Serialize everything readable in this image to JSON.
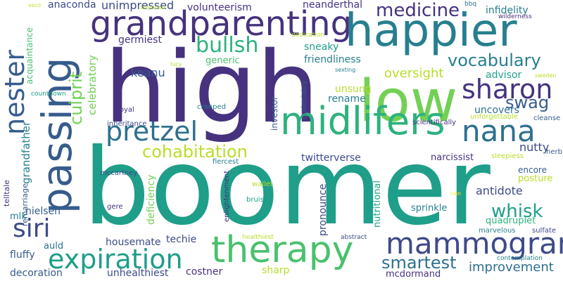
{
  "palette": {
    "dark_purple": "#46327e",
    "indigo": "#3e4a89",
    "blue": "#365c8d",
    "steel_blue": "#2d708e",
    "teal": "#277f8e",
    "teal_green": "#1f9e89",
    "green": "#2db27d",
    "light_green": "#4ac16d",
    "lime": "#73d055",
    "yellow_green": "#b8de29",
    "yellow": "#fde725"
  },
  "words": {
    "boomer": "boomer",
    "high": "high",
    "happier": "happier",
    "low": "low",
    "passing": "passing",
    "grandparenting": "grandparenting",
    "midlifers": "midlifers",
    "therapy": "therapy",
    "mammogram": "mammogram",
    "nana": "nana",
    "sharon": "sharon",
    "nester": "nester",
    "expiration": "expiration",
    "pretzel": "pretzel",
    "siri": "siri",
    "medicine": "medicine",
    "bullsh": "bullsh",
    "vocabulary": "vocabulary",
    "swag": "swag",
    "cohabitation": "cohabitation",
    "whisk": "whisk",
    "smartest": "smartest",
    "culprit": "culprit",
    "improvement": "improvement",
    "oversight": "oversight",
    "unimpressed": "unimpressed",
    "volunteerism": "volunteerism",
    "neanderthal": "neanderthal",
    "infidelity": "infidelity",
    "anaconda": "anaconda",
    "germiest": "germiest",
    "keanu": "keanu",
    "generic": "generic",
    "sneaky": "sneaky",
    "friendliness": "friendliness",
    "advisor": "advisor",
    "unsung": "unsung",
    "rename": "rename",
    "uncovers": "uncovers",
    "celebratory": "celebratory",
    "grandfather": "grandfather",
    "acquaintance": "acquaintance",
    "nutty": "nutty",
    "twitterverse": "twitterverse",
    "narcissist": "narcissist",
    "encore": "encore",
    "posture": "posture",
    "antidote": "antidote",
    "deficiency": "deficiency",
    "pronounce": "pronounce",
    "nutritional": "nutritional",
    "sprinkle": "sprinkle",
    "quadruplet": "quadruplet",
    "remarriage": "remarriage",
    "nielsen": "nielsen",
    "mlk": "mlk",
    "telltale": "telltale",
    "housemate": "housemate",
    "techie": "techie",
    "auld": "auld",
    "fluffy": "fluffy",
    "decoration": "decoration",
    "unhealthiest": "unhealthiest",
    "costner": "costner",
    "sharp": "sharp",
    "mcdormand": "mcdormand",
    "investor": "investor",
    "undeniably": "undeniably",
    "scientifically": "scientifically",
    "unforgettable": "unforgettable",
    "cleanse": "cleanse",
    "crimped": "crimped",
    "inheritance": "inheritance",
    "royal": "royal",
    "boyhood": "boyhood",
    "mccartney": "mccartney",
    "fiercest": "fiercest",
    "sleepiess": "sleepiess",
    "herb": "herb",
    "enlightenment": "enlightenment",
    "wallet": "wallet",
    "bruise": "bruise",
    "gere": "gere",
    "nan": "nan",
    "healthiest": "healthiest",
    "abstract": "abstract",
    "marvelous": "marvelous",
    "sulfate": "sulfate",
    "contemplation": "contemplation",
    "sexting": "sexting",
    "countdown": "countdown",
    "lucy": "lucy",
    "dedication": "dedication",
    "bbq": "bbq",
    "wilderness": "wilderness",
    "sweden": "sweden",
    "vsco": "vsco"
  }
}
